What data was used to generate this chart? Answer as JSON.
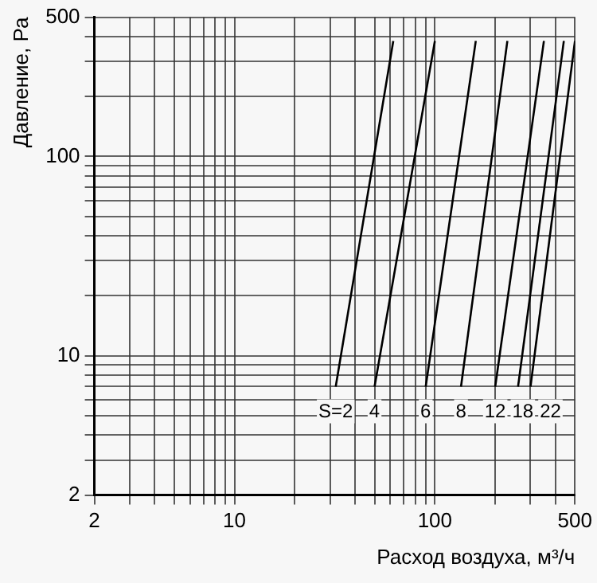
{
  "chart_data": {
    "type": "line",
    "xlabel": "Расход воздуха, м³/ч",
    "ylabel": "Давление, Ра",
    "log": "xy",
    "xlim": [
      2,
      500
    ],
    "ylim": [
      2,
      500
    ],
    "xticks": [
      2,
      {
        "value": 3,
        "label": null
      },
      {
        "value": 4,
        "label": null
      },
      {
        "value": 5,
        "label": null
      },
      {
        "value": 6,
        "label": null
      },
      {
        "value": 7,
        "label": null
      },
      {
        "value": 8,
        "label": null
      },
      {
        "value": 9,
        "label": null
      },
      10,
      {
        "value": 20,
        "label": null
      },
      {
        "value": 30,
        "label": null
      },
      {
        "value": 40,
        "label": null
      },
      {
        "value": 50,
        "label": null
      },
      {
        "value": 60,
        "label": null
      },
      {
        "value": 70,
        "label": null
      },
      {
        "value": 80,
        "label": null
      },
      {
        "value": 90,
        "label": null
      },
      100,
      {
        "value": 200,
        "label": null
      },
      {
        "value": 300,
        "label": null
      },
      {
        "value": 400,
        "label": null
      },
      500
    ],
    "yticks": [
      2,
      {
        "value": 3,
        "label": null
      },
      {
        "value": 4,
        "label": null
      },
      {
        "value": 5,
        "label": null
      },
      {
        "value": 6,
        "label": null
      },
      {
        "value": 7,
        "label": null
      },
      {
        "value": 8,
        "label": null
      },
      {
        "value": 9,
        "label": null
      },
      10,
      {
        "value": 20,
        "label": null
      },
      {
        "value": 30,
        "label": null
      },
      {
        "value": 40,
        "label": null
      },
      {
        "value": 50,
        "label": null
      },
      {
        "value": 60,
        "label": null
      },
      {
        "value": 70,
        "label": null
      },
      {
        "value": 80,
        "label": null
      },
      {
        "value": 90,
        "label": null
      },
      100,
      {
        "value": 200,
        "label": null
      },
      {
        "value": 300,
        "label": null
      },
      {
        "value": 400,
        "label": null
      },
      500
    ],
    "grid": true,
    "legend": false,
    "marker": "none",
    "line_style": "solid",
    "series": [
      {
        "name": "S=2",
        "color": "#000000",
        "x": [
          32,
          62
        ],
        "values": [
          7,
          380
        ]
      },
      {
        "name": "4",
        "color": "#000000",
        "x": [
          50,
          100
        ],
        "values": [
          7,
          380
        ]
      },
      {
        "name": "6",
        "color": "#000000",
        "x": [
          90,
          160
        ],
        "values": [
          7,
          380
        ]
      },
      {
        "name": "8",
        "color": "#000000",
        "x": [
          135,
          230
        ],
        "values": [
          7,
          380
        ]
      },
      {
        "name": "12",
        "color": "#000000",
        "x": [
          200,
          350
        ],
        "values": [
          7,
          380
        ]
      },
      {
        "name": "18",
        "color": "#000000",
        "x": [
          260,
          440
        ],
        "values": [
          7,
          380
        ]
      },
      {
        "name": "22",
        "color": "#000000",
        "x": [
          300,
          500
        ],
        "values": [
          7,
          380
        ]
      }
    ]
  }
}
